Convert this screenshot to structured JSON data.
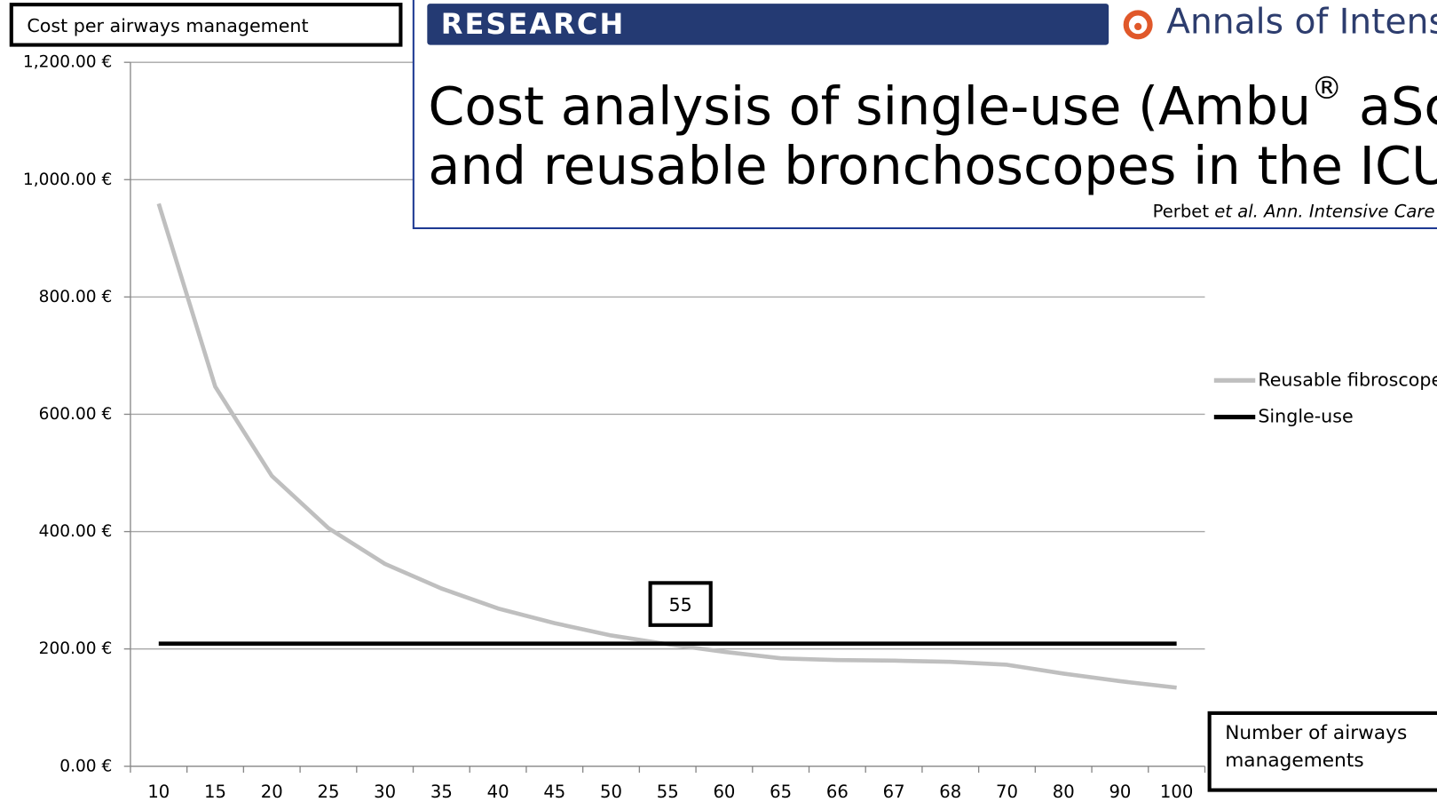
{
  "chart_data": {
    "type": "line",
    "ylabel": "Cost per airways management",
    "xlabel": "Number of airways managements",
    "categories": [
      "10",
      "15",
      "20",
      "25",
      "30",
      "35",
      "40",
      "45",
      "50",
      "55",
      "60",
      "65",
      "66",
      "67",
      "68",
      "70",
      "80",
      "90",
      "100"
    ],
    "series": [
      {
        "name": "Reusable fibroscope",
        "color": "#bfbfbf",
        "values": [
          959,
          647,
          495,
          406,
          345,
          303,
          269,
          244,
          223,
          208,
          195,
          184,
          181,
          180,
          178,
          173,
          158,
          145,
          134
        ]
      },
      {
        "name": "Single-use",
        "color": "#000000",
        "values": [
          209,
          209,
          209,
          209,
          209,
          209,
          209,
          209,
          209,
          209,
          209,
          209,
          209,
          209,
          209,
          209,
          209,
          209,
          209
        ]
      }
    ],
    "ylim": [
      0,
      1200
    ],
    "yticks": [
      {
        "value": 0,
        "label": "0.00 €"
      },
      {
        "value": 200,
        "label": "200.00 €"
      },
      {
        "value": 400,
        "label": "400.00 €"
      },
      {
        "value": 600,
        "label": "600.00 €"
      },
      {
        "value": 800,
        "label": "800.00 €"
      },
      {
        "value": 1000,
        "label": "1,000.00 €"
      },
      {
        "value": 1200,
        "label": "1,200.00 €"
      }
    ],
    "grid": true,
    "legend": "right",
    "annotations": [
      {
        "text": "55",
        "category": 9
      }
    ]
  },
  "header": {
    "section": "RESEARCH",
    "journal": "Annals of Intensiv",
    "title_line1": [
      "Cost analysis of single-use (Ambu",
      "®",
      " aScop"
    ],
    "title_line2": "and reusable bronchoscopes  in the ICU",
    "citation": [
      "Perbet ",
      "et al. Ann. Intensive Care"
    ]
  }
}
